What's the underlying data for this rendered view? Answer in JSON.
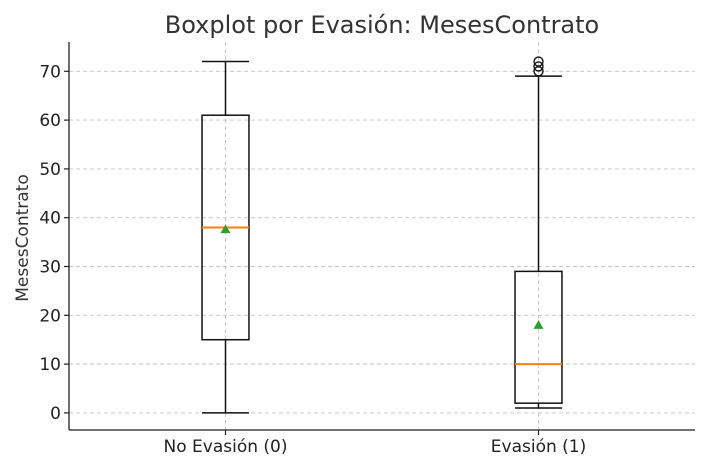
{
  "chart_data": {
    "type": "boxplot",
    "title": "Boxplot por Evasión: MesesContrato",
    "xlabel": "",
    "ylabel": "MesesContrato",
    "categories": [
      "No Evasión (0)",
      "Evasión (1)"
    ],
    "ylim": [
      -3.5,
      76
    ],
    "yticks": [
      0,
      10,
      20,
      30,
      40,
      50,
      60,
      70
    ],
    "grid": true,
    "boxes": [
      {
        "category": "No Evasión (0)",
        "whisker_low": 0,
        "q1": 15,
        "median": 38,
        "q3": 61,
        "whisker_high": 72,
        "mean": 37.6,
        "outliers": []
      },
      {
        "category": "Evasión (1)",
        "whisker_low": 1,
        "q1": 2,
        "median": 10,
        "q3": 29,
        "whisker_high": 69,
        "mean": 18.0,
        "outliers": [
          70,
          71,
          72
        ]
      }
    ],
    "colors": {
      "box": "#111111",
      "median": "#ff7f0e",
      "mean": "#2ca02c",
      "grid": "#c4c4c4"
    }
  }
}
